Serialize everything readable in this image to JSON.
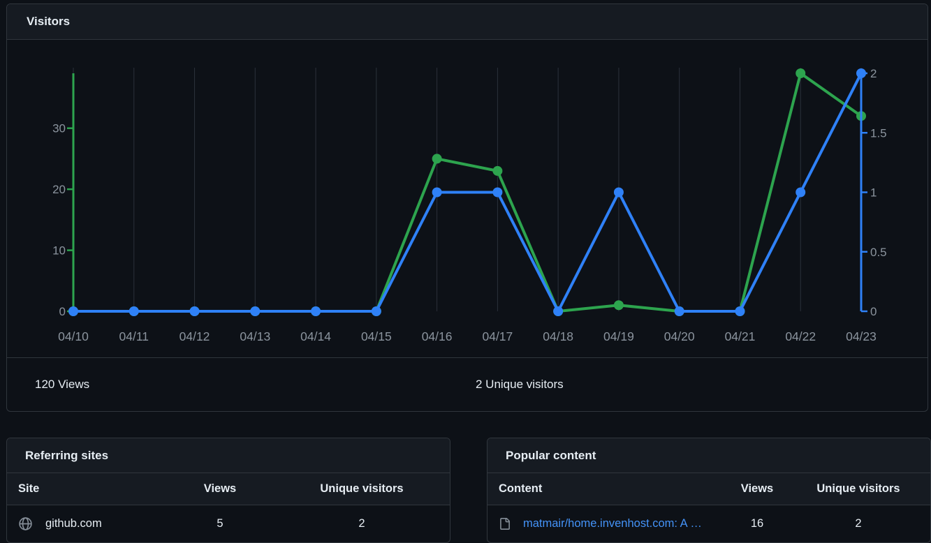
{
  "visitors_card": {
    "title": "Visitors",
    "stats": {
      "views_total": "120 Views",
      "unique_total": "2 Unique visitors"
    }
  },
  "chart_data": {
    "type": "line",
    "title": "Visitors",
    "x": [
      "04/10",
      "04/11",
      "04/12",
      "04/13",
      "04/14",
      "04/15",
      "04/16",
      "04/17",
      "04/18",
      "04/19",
      "04/20",
      "04/21",
      "04/22",
      "04/23"
    ],
    "series": [
      {
        "name": "Views",
        "axis": "left",
        "color": "#2da44e",
        "values": [
          0,
          0,
          0,
          0,
          0,
          0,
          25,
          23,
          0,
          1,
          0,
          0,
          39,
          32
        ]
      },
      {
        "name": "Unique visitors",
        "axis": "right",
        "color": "#2f81f7",
        "values": [
          0,
          0,
          0,
          0,
          0,
          0,
          1,
          1,
          0,
          1,
          0,
          0,
          1,
          2
        ]
      }
    ],
    "left_axis": {
      "ticks": [
        0,
        10,
        20,
        30
      ],
      "min": 0,
      "max": 39,
      "color": "#2da44e"
    },
    "right_axis": {
      "ticks": [
        0,
        0.5,
        1,
        1.5,
        2
      ],
      "min": 0,
      "max": 2,
      "color": "#2f81f7"
    },
    "grid": true,
    "legend": "none",
    "grid_color": "#2b313b",
    "label_color": "#8b949e"
  },
  "referring_sites": {
    "title": "Referring sites",
    "columns": {
      "main": "Site",
      "views": "Views",
      "unique": "Unique visitors"
    },
    "rows": [
      {
        "site": "github.com",
        "views": "5",
        "unique": "2",
        "icon": "globe-icon"
      }
    ]
  },
  "popular_content": {
    "title": "Popular content",
    "columns": {
      "main": "Content",
      "views": "Views",
      "unique": "Unique visitors"
    },
    "rows": [
      {
        "content": "matmair/home.invenhost.com: A …",
        "views": "16",
        "unique": "2",
        "icon": "file-icon"
      }
    ]
  },
  "colors": {
    "background": "#0d1117",
    "card_header": "#161b22",
    "border": "#30363d",
    "text": "#e6edf3",
    "muted": "#8b949e",
    "green": "#2da44e",
    "blue": "#2f81f7",
    "link": "#4493f8"
  }
}
